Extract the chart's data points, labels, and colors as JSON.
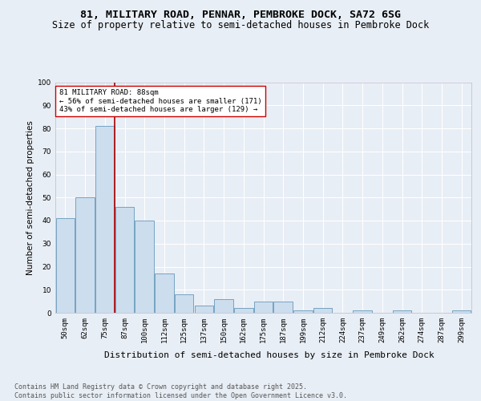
{
  "title1": "81, MILITARY ROAD, PENNAR, PEMBROKE DOCK, SA72 6SG",
  "title2": "Size of property relative to semi-detached houses in Pembroke Dock",
  "xlabel": "Distribution of semi-detached houses by size in Pembroke Dock",
  "ylabel": "Number of semi-detached properties",
  "categories": [
    "50sqm",
    "62sqm",
    "75sqm",
    "87sqm",
    "100sqm",
    "112sqm",
    "125sqm",
    "137sqm",
    "150sqm",
    "162sqm",
    "175sqm",
    "187sqm",
    "199sqm",
    "212sqm",
    "224sqm",
    "237sqm",
    "249sqm",
    "262sqm",
    "274sqm",
    "287sqm",
    "299sqm"
  ],
  "values": [
    41,
    50,
    81,
    46,
    40,
    17,
    8,
    3,
    6,
    2,
    5,
    5,
    1,
    2,
    0,
    1,
    0,
    1,
    0,
    0,
    1
  ],
  "bar_color": "#ccdded",
  "bar_edge_color": "#6699bb",
  "vline_x": 2.5,
  "vline_color": "#aa0000",
  "annotation_text": "81 MILITARY ROAD: 88sqm\n← 56% of semi-detached houses are smaller (171)\n43% of semi-detached houses are larger (129) →",
  "annotation_box_facecolor": "#ffffff",
  "annotation_box_edgecolor": "#cc0000",
  "footer_text": "Contains HM Land Registry data © Crown copyright and database right 2025.\nContains public sector information licensed under the Open Government Licence v3.0.",
  "ylim": [
    0,
    100
  ],
  "yticks": [
    0,
    10,
    20,
    30,
    40,
    50,
    60,
    70,
    80,
    90,
    100
  ],
  "bg_color": "#e8eef5",
  "grid_color": "#ffffff",
  "title1_fontsize": 9.5,
  "title2_fontsize": 8.5,
  "xlabel_fontsize": 8,
  "ylabel_fontsize": 7.5,
  "tick_fontsize": 6.5,
  "annot_fontsize": 6.5,
  "footer_fontsize": 6
}
